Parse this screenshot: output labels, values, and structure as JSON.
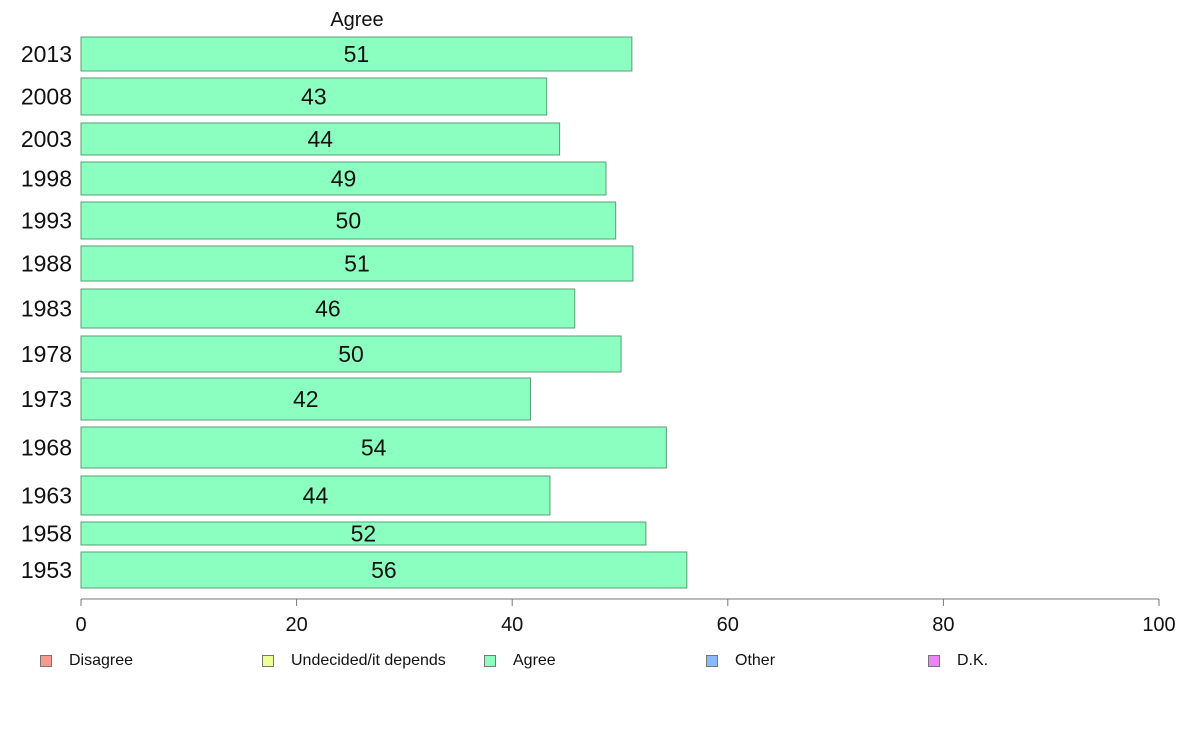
{
  "chart_data": {
    "type": "bar",
    "orientation": "horizontal",
    "title": "Agree",
    "categories": [
      "2013",
      "2008",
      "2003",
      "1998",
      "1993",
      "1988",
      "1983",
      "1978",
      "1973",
      "1968",
      "1963",
      "1958",
      "1953"
    ],
    "values": [
      51.1,
      43.2,
      44.4,
      48.7,
      49.6,
      51.2,
      45.8,
      50.1,
      41.7,
      54.3,
      43.5,
      52.4,
      56.2
    ],
    "value_labels": [
      "51",
      "43",
      "44",
      "49",
      "50",
      "51",
      "46",
      "50",
      "42",
      "54",
      "44",
      "52",
      "56"
    ],
    "xlim": [
      0,
      100
    ],
    "x_ticks": [
      "0",
      "20",
      "40",
      "60",
      "80",
      "100"
    ],
    "bar_color": "#8affbf",
    "bar_edge_color": "#5a9e76",
    "grid": false,
    "legend_position": "bottom",
    "legend": [
      {
        "label": "Disagree",
        "color": "#f99a90"
      },
      {
        "label": "Undecided/it depends",
        "color": "#eeff99"
      },
      {
        "label": "Agree",
        "color": "#8affbf"
      },
      {
        "label": "Other",
        "color": "#8ab8ff"
      },
      {
        "label": "D.K.",
        "color": "#ec84f5"
      }
    ]
  }
}
